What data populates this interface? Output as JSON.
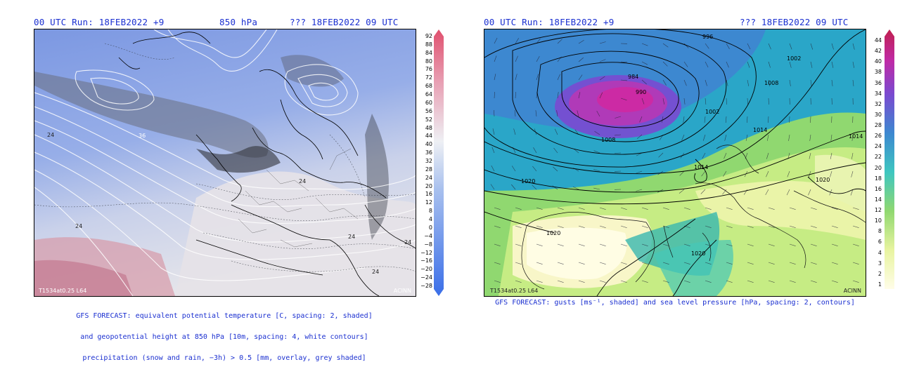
{
  "left_panel": {
    "run_label": "00 UTC Run: 18FEB2022 +9",
    "level_label": "850 hPa",
    "valid_label": "??? 18FEB2022 09 UTC",
    "colorbar_ticks": [
      "92",
      "88",
      "84",
      "80",
      "76",
      "72",
      "68",
      "64",
      "60",
      "56",
      "52",
      "48",
      "44",
      "40",
      "36",
      "32",
      "28",
      "24",
      "20",
      "16",
      "12",
      "8",
      "4",
      "0",
      "−4",
      "−8",
      "−12",
      "−16",
      "−20",
      "−24",
      "−28"
    ],
    "contour_labels": [
      "24",
      "36",
      "24",
      "24",
      "24",
      "24",
      "24"
    ],
    "caption_lines": [
      "GFS FORECAST: equivalent potential temperature [C, spacing: 2, shaded]",
      "and geopotential height at 850 hPa [10m, spacing: 4, white contours]",
      "precipitation (snow and rain, −3h) > 0.5 [mm, overlay, grey shaded]"
    ],
    "corner_left": "T1534at0.25 L64",
    "corner_right": "ACINN"
  },
  "right_panel": {
    "run_label": "00 UTC Run: 18FEB2022 +9",
    "valid_label": "??? 18FEB2022 09 UTC",
    "colorbar_ticks": [
      "44",
      "42",
      "40",
      "38",
      "36",
      "34",
      "32",
      "30",
      "28",
      "26",
      "24",
      "22",
      "20",
      "18",
      "16",
      "14",
      "12",
      "10",
      "8",
      "6",
      "4",
      "3",
      "2",
      "1"
    ],
    "isobar_labels": [
      "996",
      "1002",
      "984",
      "990",
      "1002",
      "1008",
      "1008",
      "1014",
      "1014",
      "1014",
      "1020",
      "1020",
      "1020",
      "1020"
    ],
    "caption": "GFS FORECAST: gusts [ms⁻¹, shaded] and sea level pressure [hPa, spacing: 2, contours]",
    "corner_left": "T1534at0.25 L64",
    "corner_right": "ACINN"
  },
  "colors": {
    "header_text": "#1a2fd0",
    "theta_cold": "#6f8fe0",
    "theta_mid": "#d8dce8",
    "theta_warm": "#e07a95",
    "gust_low": "#fffde0",
    "gust_mid": "#3ec6c0",
    "gust_high": "#c02aa6"
  }
}
